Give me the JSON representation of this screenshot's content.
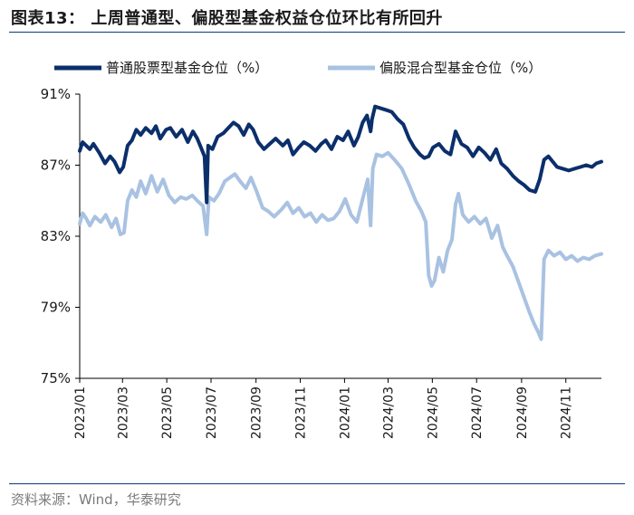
{
  "title": "图表13：  上周普通型、偏股型基金权益仓位环比有所回升",
  "source": "资料来源：Wind，华泰研究",
  "colors": {
    "series1": "#0b2f6b",
    "series2": "#a9c2e2",
    "rule": "#0b3a7a"
  },
  "chart_data": {
    "type": "line",
    "title": "",
    "xlabel": "",
    "ylabel": "",
    "ylim": [
      75,
      91
    ],
    "yticks": [
      91,
      87,
      83,
      79,
      75
    ],
    "ytick_labels": [
      "91%",
      "87%",
      "83%",
      "79%",
      "75%"
    ],
    "xlim": [
      "2023-01-01",
      "2024-12-20"
    ],
    "xticks": [
      "2023-01-01",
      "2023-03-01",
      "2023-05-01",
      "2023-07-01",
      "2023-09-01",
      "2023-11-01",
      "2024-01-01",
      "2024-03-01",
      "2024-05-01",
      "2024-07-01",
      "2024-09-01",
      "2024-11-01"
    ],
    "xtick_labels": [
      "2023/01",
      "2023/03",
      "2023/05",
      "2023/07",
      "2023/09",
      "2023/11",
      "2024/01",
      "2024/03",
      "2024/05",
      "2024/07",
      "2024/09",
      "2024/11"
    ],
    "grid": false,
    "legend_position": "top",
    "series": [
      {
        "name": "普通股票型基金仓位（%）",
        "points": [
          [
            "2023-01-01",
            87.8
          ],
          [
            "2023-01-05",
            88.3
          ],
          [
            "2023-01-10",
            88.1
          ],
          [
            "2023-01-15",
            87.9
          ],
          [
            "2023-01-20",
            88.2
          ],
          [
            "2023-01-28",
            87.7
          ],
          [
            "2023-02-05",
            87.1
          ],
          [
            "2023-02-12",
            87.5
          ],
          [
            "2023-02-18",
            87.2
          ],
          [
            "2023-02-25",
            86.6
          ],
          [
            "2023-03-02",
            86.9
          ],
          [
            "2023-03-08",
            88.1
          ],
          [
            "2023-03-14",
            88.4
          ],
          [
            "2023-03-20",
            89.0
          ],
          [
            "2023-03-26",
            88.7
          ],
          [
            "2023-04-02",
            89.1
          ],
          [
            "2023-04-10",
            88.8
          ],
          [
            "2023-04-16",
            89.2
          ],
          [
            "2023-04-22",
            88.5
          ],
          [
            "2023-04-30",
            89.0
          ],
          [
            "2023-05-06",
            89.1
          ],
          [
            "2023-05-14",
            88.6
          ],
          [
            "2023-05-22",
            89.0
          ],
          [
            "2023-05-30",
            88.3
          ],
          [
            "2023-06-06",
            88.9
          ],
          [
            "2023-06-12",
            88.5
          ],
          [
            "2023-06-18",
            87.9
          ],
          [
            "2023-06-22",
            87.5
          ],
          [
            "2023-06-25",
            84.9
          ],
          [
            "2023-06-27",
            88.1
          ],
          [
            "2023-07-03",
            87.9
          ],
          [
            "2023-07-10",
            88.6
          ],
          [
            "2023-07-18",
            88.8
          ],
          [
            "2023-07-25",
            89.1
          ],
          [
            "2023-08-01",
            89.4
          ],
          [
            "2023-08-08",
            89.2
          ],
          [
            "2023-08-15",
            88.7
          ],
          [
            "2023-08-22",
            89.3
          ],
          [
            "2023-08-28",
            89.0
          ],
          [
            "2023-09-04",
            88.3
          ],
          [
            "2023-09-12",
            87.9
          ],
          [
            "2023-09-20",
            88.2
          ],
          [
            "2023-09-28",
            88.5
          ],
          [
            "2023-10-08",
            88.1
          ],
          [
            "2023-10-15",
            88.4
          ],
          [
            "2023-10-22",
            87.6
          ],
          [
            "2023-10-30",
            88.0
          ],
          [
            "2023-11-06",
            88.3
          ],
          [
            "2023-11-14",
            88.1
          ],
          [
            "2023-11-22",
            87.8
          ],
          [
            "2023-11-30",
            88.2
          ],
          [
            "2023-12-06",
            88.4
          ],
          [
            "2023-12-14",
            87.9
          ],
          [
            "2023-12-22",
            88.6
          ],
          [
            "2023-12-30",
            88.4
          ],
          [
            "2024-01-06",
            88.9
          ],
          [
            "2024-01-14",
            88.1
          ],
          [
            "2024-01-20",
            88.6
          ],
          [
            "2024-01-26",
            89.4
          ],
          [
            "2024-02-01",
            89.8
          ],
          [
            "2024-02-06",
            88.9
          ],
          [
            "2024-02-08",
            89.6
          ],
          [
            "2024-02-12",
            90.3
          ],
          [
            "2024-02-20",
            90.2
          ],
          [
            "2024-02-28",
            90.1
          ],
          [
            "2024-03-06",
            90.0
          ],
          [
            "2024-03-14",
            89.6
          ],
          [
            "2024-03-22",
            89.3
          ],
          [
            "2024-03-30",
            88.5
          ],
          [
            "2024-04-06",
            88.0
          ],
          [
            "2024-04-14",
            87.6
          ],
          [
            "2024-04-20",
            87.4
          ],
          [
            "2024-04-26",
            87.5
          ],
          [
            "2024-05-02",
            88.0
          ],
          [
            "2024-05-10",
            88.2
          ],
          [
            "2024-05-18",
            87.8
          ],
          [
            "2024-05-26",
            87.6
          ],
          [
            "2024-06-02",
            88.9
          ],
          [
            "2024-06-10",
            88.2
          ],
          [
            "2024-06-18",
            88.0
          ],
          [
            "2024-06-26",
            87.5
          ],
          [
            "2024-07-04",
            88.0
          ],
          [
            "2024-07-12",
            87.7
          ],
          [
            "2024-07-20",
            87.3
          ],
          [
            "2024-07-28",
            87.9
          ],
          [
            "2024-08-04",
            87.1
          ],
          [
            "2024-08-12",
            86.8
          ],
          [
            "2024-08-20",
            86.4
          ],
          [
            "2024-08-28",
            86.1
          ],
          [
            "2024-09-04",
            85.9
          ],
          [
            "2024-09-12",
            85.6
          ],
          [
            "2024-09-20",
            85.5
          ],
          [
            "2024-09-26",
            86.2
          ],
          [
            "2024-10-02",
            87.3
          ],
          [
            "2024-10-08",
            87.5
          ],
          [
            "2024-10-14",
            87.2
          ],
          [
            "2024-10-20",
            86.9
          ],
          [
            "2024-10-28",
            86.8
          ],
          [
            "2024-11-05",
            86.7
          ],
          [
            "2024-11-13",
            86.8
          ],
          [
            "2024-11-21",
            86.9
          ],
          [
            "2024-11-29",
            87.0
          ],
          [
            "2024-12-07",
            86.9
          ],
          [
            "2024-12-13",
            87.1
          ],
          [
            "2024-12-20",
            87.2
          ]
        ]
      },
      {
        "name": "偏股混合型基金仓位（%）",
        "points": [
          [
            "2023-01-01",
            83.7
          ],
          [
            "2023-01-05",
            84.3
          ],
          [
            "2023-01-10",
            84.0
          ],
          [
            "2023-01-15",
            83.6
          ],
          [
            "2023-01-22",
            84.1
          ],
          [
            "2023-01-30",
            83.8
          ],
          [
            "2023-02-06",
            84.2
          ],
          [
            "2023-02-14",
            83.5
          ],
          [
            "2023-02-20",
            84.0
          ],
          [
            "2023-02-26",
            83.1
          ],
          [
            "2023-03-03",
            83.2
          ],
          [
            "2023-03-08",
            85.0
          ],
          [
            "2023-03-14",
            85.6
          ],
          [
            "2023-03-20",
            85.2
          ],
          [
            "2023-03-26",
            86.1
          ],
          [
            "2023-04-02",
            85.4
          ],
          [
            "2023-04-10",
            86.4
          ],
          [
            "2023-04-18",
            85.5
          ],
          [
            "2023-04-26",
            86.2
          ],
          [
            "2023-05-04",
            85.3
          ],
          [
            "2023-05-12",
            84.9
          ],
          [
            "2023-05-20",
            85.2
          ],
          [
            "2023-05-28",
            85.1
          ],
          [
            "2023-06-05",
            85.3
          ],
          [
            "2023-06-12",
            85.0
          ],
          [
            "2023-06-20",
            84.7
          ],
          [
            "2023-06-25",
            83.1
          ],
          [
            "2023-06-28",
            85.2
          ],
          [
            "2023-07-05",
            85.0
          ],
          [
            "2023-07-12",
            85.4
          ],
          [
            "2023-07-20",
            86.1
          ],
          [
            "2023-07-27",
            86.3
          ],
          [
            "2023-08-03",
            86.5
          ],
          [
            "2023-08-10",
            86.1
          ],
          [
            "2023-08-18",
            85.7
          ],
          [
            "2023-08-25",
            86.3
          ],
          [
            "2023-09-02",
            85.5
          ],
          [
            "2023-09-10",
            84.6
          ],
          [
            "2023-09-18",
            84.4
          ],
          [
            "2023-09-26",
            84.1
          ],
          [
            "2023-10-06",
            84.5
          ],
          [
            "2023-10-14",
            84.9
          ],
          [
            "2023-10-22",
            84.3
          ],
          [
            "2023-10-30",
            84.6
          ],
          [
            "2023-11-07",
            84.1
          ],
          [
            "2023-11-15",
            84.3
          ],
          [
            "2023-11-23",
            83.8
          ],
          [
            "2023-12-01",
            84.2
          ],
          [
            "2023-12-09",
            83.9
          ],
          [
            "2023-12-17",
            84.0
          ],
          [
            "2023-12-25",
            84.4
          ],
          [
            "2024-01-02",
            85.1
          ],
          [
            "2024-01-10",
            84.2
          ],
          [
            "2024-01-18",
            83.8
          ],
          [
            "2024-01-26",
            85.1
          ],
          [
            "2024-02-02",
            86.2
          ],
          [
            "2024-02-06",
            83.6
          ],
          [
            "2024-02-09",
            86.8
          ],
          [
            "2024-02-14",
            87.6
          ],
          [
            "2024-02-22",
            87.5
          ],
          [
            "2024-03-01",
            87.7
          ],
          [
            "2024-03-10",
            87.3
          ],
          [
            "2024-03-20",
            86.8
          ],
          [
            "2024-03-30",
            85.9
          ],
          [
            "2024-04-08",
            85.0
          ],
          [
            "2024-04-16",
            84.4
          ],
          [
            "2024-04-22",
            83.8
          ],
          [
            "2024-04-26",
            80.8
          ],
          [
            "2024-04-30",
            80.2
          ],
          [
            "2024-05-04",
            80.5
          ],
          [
            "2024-05-10",
            81.8
          ],
          [
            "2024-05-16",
            81.0
          ],
          [
            "2024-05-22",
            82.2
          ],
          [
            "2024-05-28",
            82.8
          ],
          [
            "2024-06-02",
            84.8
          ],
          [
            "2024-06-06",
            85.4
          ],
          [
            "2024-06-12",
            84.2
          ],
          [
            "2024-06-20",
            83.8
          ],
          [
            "2024-06-28",
            84.1
          ],
          [
            "2024-07-06",
            83.7
          ],
          [
            "2024-07-14",
            84.0
          ],
          [
            "2024-07-22",
            82.9
          ],
          [
            "2024-07-30",
            83.6
          ],
          [
            "2024-08-06",
            82.4
          ],
          [
            "2024-08-12",
            81.9
          ],
          [
            "2024-08-20",
            81.3
          ],
          [
            "2024-08-28",
            80.4
          ],
          [
            "2024-09-04",
            79.6
          ],
          [
            "2024-09-12",
            78.7
          ],
          [
            "2024-09-18",
            78.1
          ],
          [
            "2024-09-24",
            77.6
          ],
          [
            "2024-09-28",
            77.2
          ],
          [
            "2024-10-02",
            81.7
          ],
          [
            "2024-10-08",
            82.2
          ],
          [
            "2024-10-16",
            81.9
          ],
          [
            "2024-10-24",
            82.1
          ],
          [
            "2024-11-01",
            81.7
          ],
          [
            "2024-11-09",
            81.9
          ],
          [
            "2024-11-17",
            81.6
          ],
          [
            "2024-11-25",
            81.8
          ],
          [
            "2024-12-03",
            81.7
          ],
          [
            "2024-12-11",
            81.9
          ],
          [
            "2024-12-20",
            82.0
          ]
        ]
      }
    ]
  }
}
